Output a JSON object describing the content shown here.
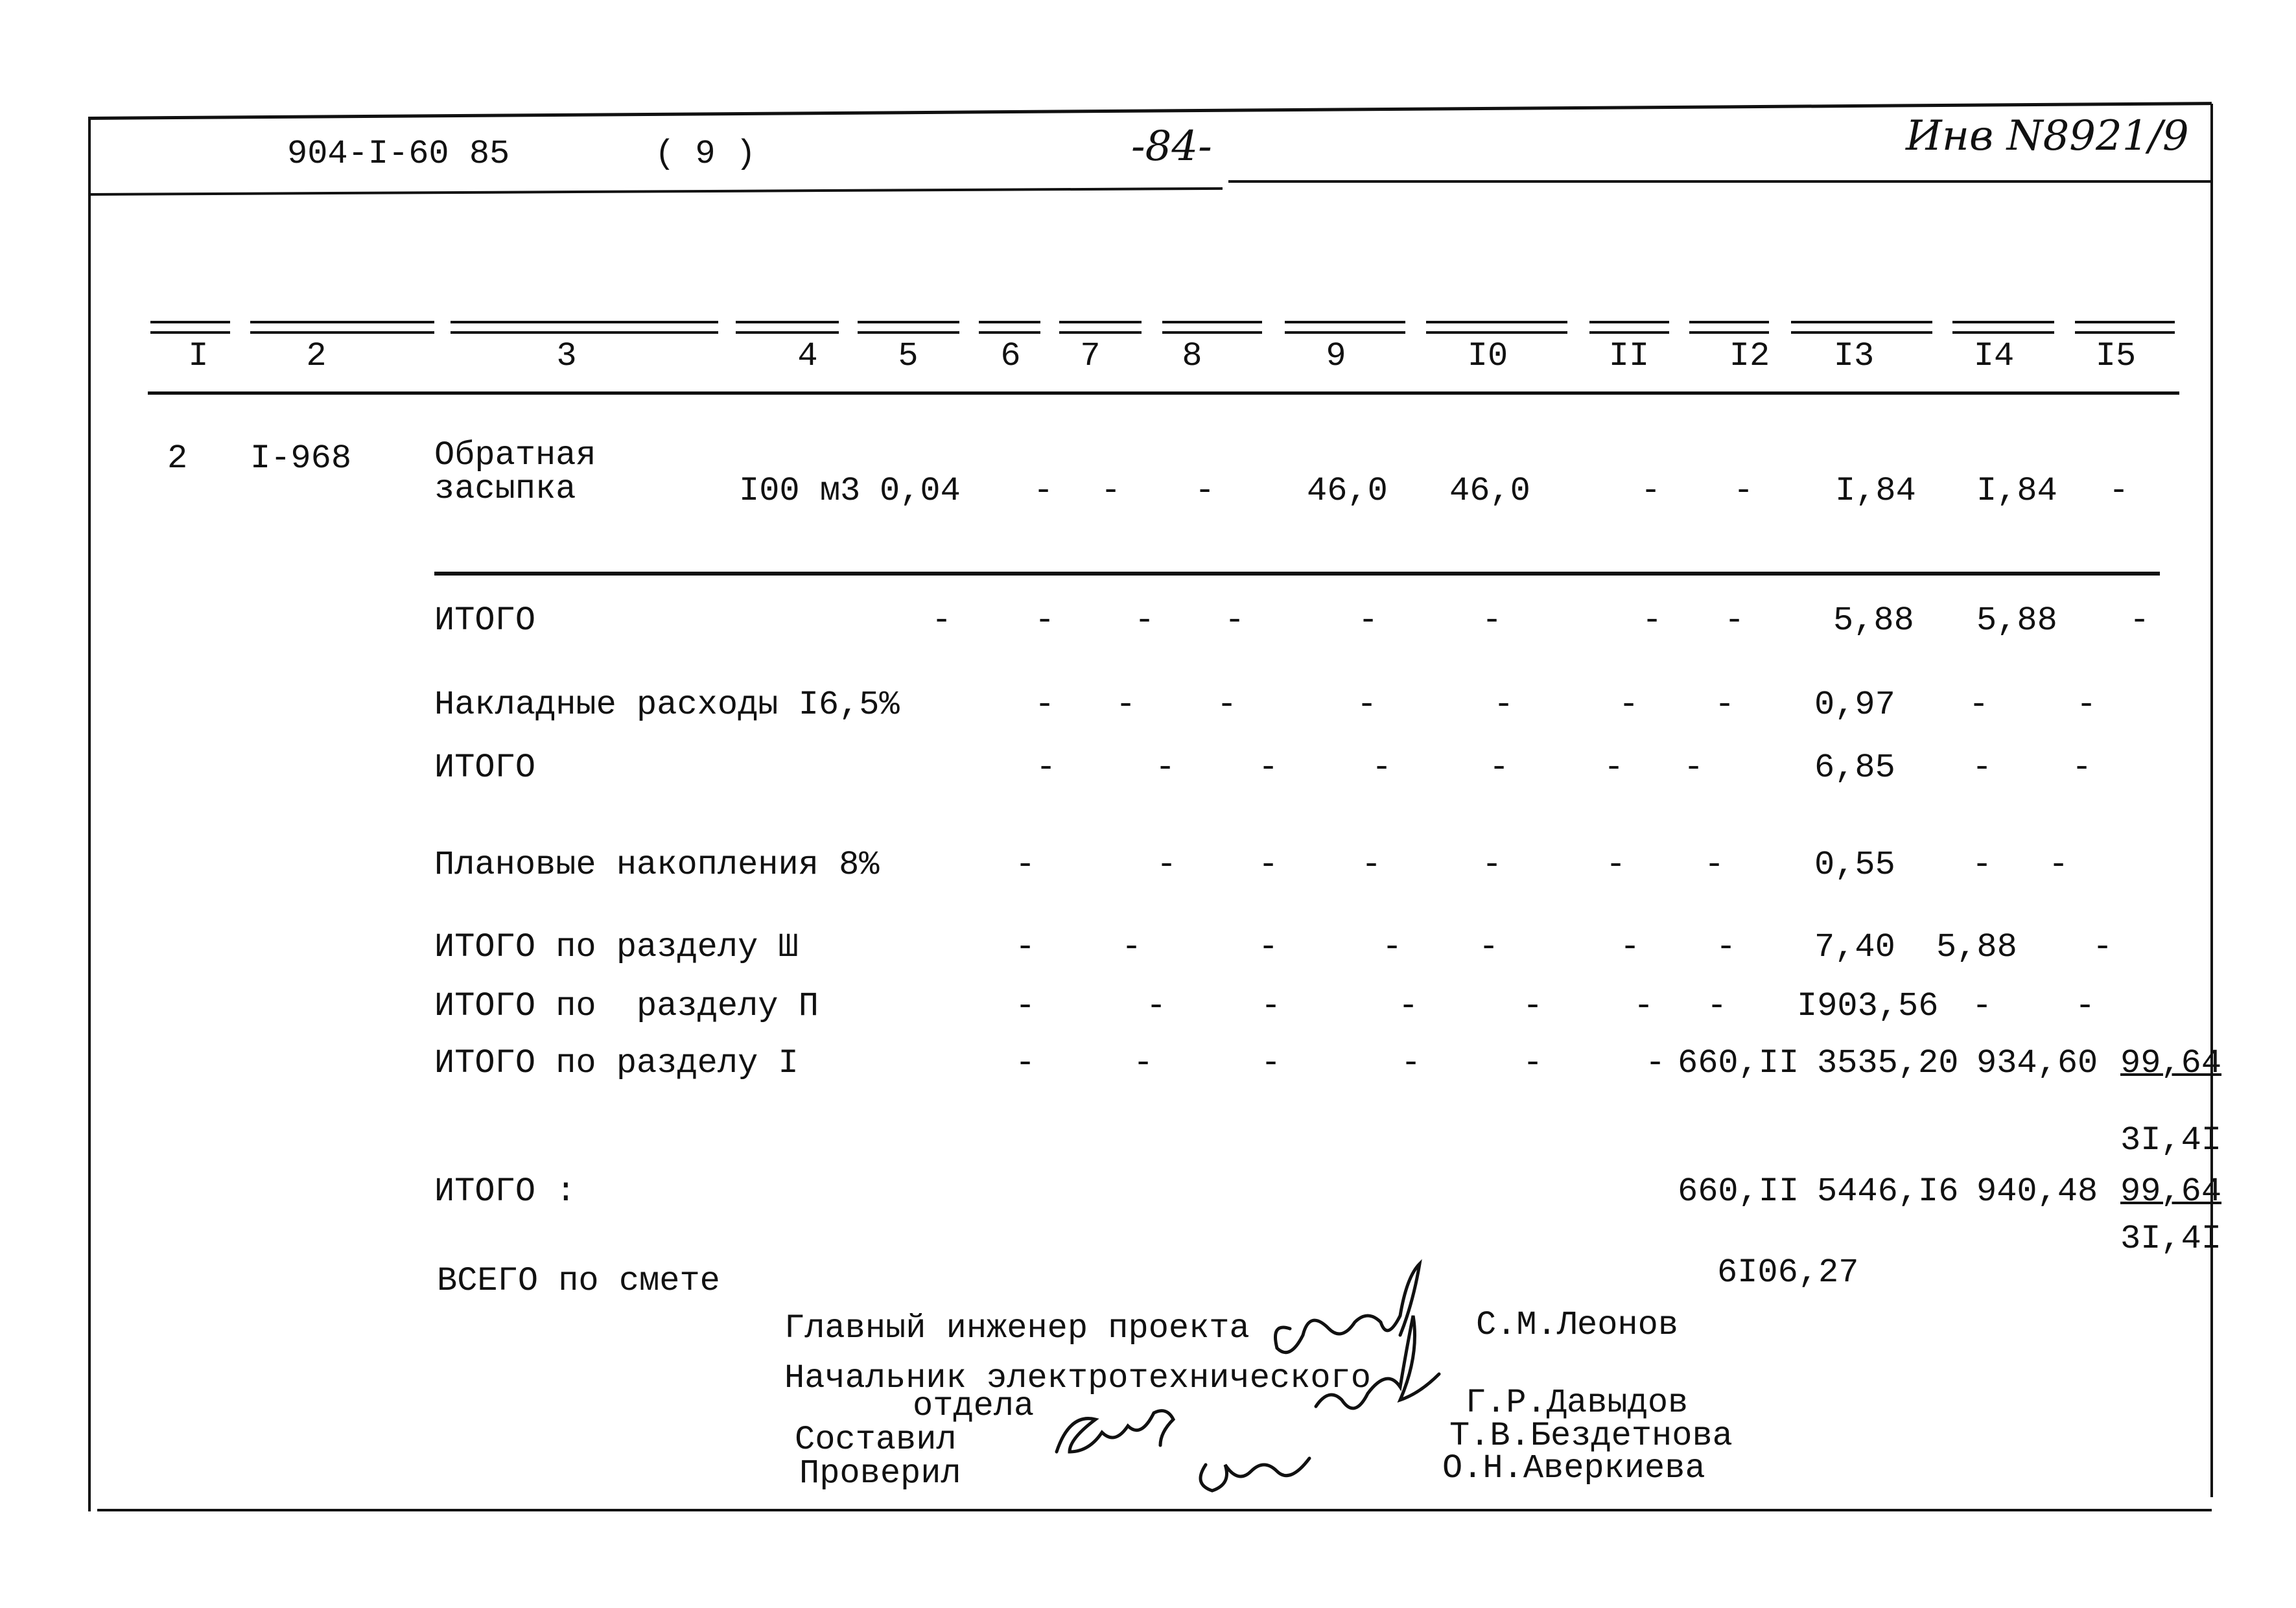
{
  "header": {
    "doc_code": "904-I-60 85",
    "sheet": "( 9 )",
    "page": "-84-",
    "inventory": "Инв N8921/9"
  },
  "columns": [
    "I",
    "2",
    "3",
    "4",
    "5",
    "6",
    "7",
    "8",
    "9",
    "I0",
    "II",
    "I2",
    "I3",
    "I4",
    "I5"
  ],
  "item": {
    "num": "2",
    "code": "I-968",
    "name_line1": "Обратная",
    "name_line2": "засыпка",
    "values": [
      "I00 м3",
      "0,04",
      "-",
      "-",
      "-",
      "46,0",
      "46,0",
      "-",
      "-",
      "I,84",
      "I,84",
      "-"
    ]
  },
  "summary_rows": [
    {
      "label": "ИТОГО",
      "values": [
        "-",
        "-",
        "-",
        "-",
        "-",
        "-",
        "-",
        "-",
        "5,88",
        "5,88",
        "-"
      ]
    },
    {
      "label": "Накладные расходы I6,5%",
      "values": [
        "-",
        "-",
        "-",
        "-",
        "-",
        "-",
        "-",
        "0,97",
        "-",
        "-"
      ]
    },
    {
      "label": "ИТОГО",
      "values": [
        "-",
        "-",
        "-",
        "-",
        "-",
        "-",
        "-",
        "6,85",
        "-",
        "-"
      ]
    },
    {
      "label": "Плановые накопления 8%",
      "values": [
        "-",
        "-",
        "-",
        "-",
        "-",
        "-",
        "-",
        "0,55",
        "-",
        "-"
      ]
    },
    {
      "label": "ИТОГО по разделу Ш",
      "values": [
        "-",
        "-",
        "-",
        "-",
        "-",
        "-",
        "-",
        "7,40",
        "5,88",
        "-"
      ]
    },
    {
      "label": "ИТОГО по  разделу П",
      "values": [
        "-",
        "-",
        "-",
        "-",
        "-",
        "-",
        "-",
        "I903,56",
        "-",
        "-"
      ]
    },
    {
      "label": "ИТОГО по разделу I",
      "values": [
        "-",
        "-",
        "-",
        "-",
        "-",
        "-",
        "660,II",
        "3535,20",
        "934,60",
        "99,64",
        "3I,4I"
      ]
    },
    {
      "label": "ИТОГО :",
      "values": [
        "660,II",
        "5446,I6",
        "940,48",
        "99,64",
        "3I,4I"
      ]
    },
    {
      "label": "ВСЕГО по смете",
      "values": [
        "6I06,27"
      ]
    }
  ],
  "signatures": [
    {
      "role": "Главный инженер проекта",
      "name": "С.М.Леонов"
    },
    {
      "role": "Начальник электротехнического",
      "role2": "отдела",
      "name": "Г.Р.Давыдов"
    },
    {
      "role": "Составил",
      "name": "Т.В.Бездетнова"
    },
    {
      "role": "Проверил",
      "name": "О.Н.Аверкиева"
    }
  ]
}
